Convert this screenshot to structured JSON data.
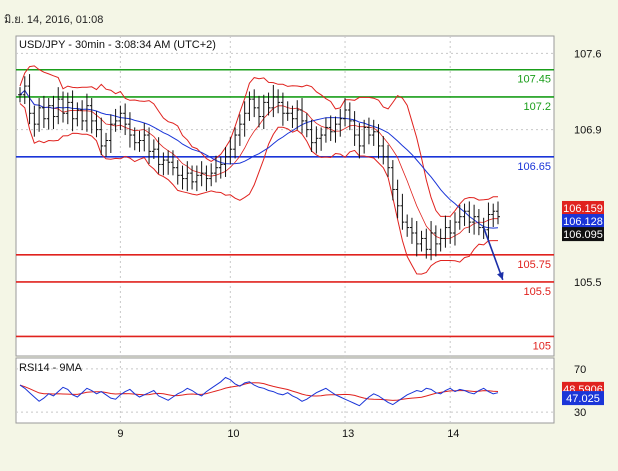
{
  "timestamp": "มิ.ย. 14, 2016, 01:08",
  "chart_data": {
    "type": "candlestick",
    "title": "USD/JPY - 30min - 3:08:34 AM (UTC+2)",
    "x_tick_labels": [
      "9",
      "10",
      "13",
      "14"
    ],
    "x_tick_positions": [
      21,
      44,
      68,
      90
    ],
    "x_range": [
      0,
      100
    ],
    "price_axis": {
      "range": [
        104.82,
        107.76
      ],
      "tick_labels": [
        "107.6",
        "106.9",
        "105.5"
      ],
      "tick_values": [
        107.6,
        106.9,
        105.5
      ]
    },
    "horizontal_levels": [
      {
        "label": "107.45",
        "value": 107.45,
        "color": "#1a9e1a"
      },
      {
        "label": "107.2",
        "value": 107.2,
        "color": "#1a9e1a"
      },
      {
        "label": "106.65",
        "value": 106.65,
        "color": "#1a35d8"
      },
      {
        "label": "105.75",
        "value": 105.75,
        "color": "#e0221e"
      },
      {
        "label": "105.5",
        "value": 105.5,
        "color": "#e0221e"
      },
      {
        "label": "105",
        "value": 105.0,
        "color": "#e0221e"
      }
    ],
    "price_markers": [
      {
        "label": "106.159",
        "value": 106.18,
        "color": "#e0221e"
      },
      {
        "label": "106.128",
        "value": 106.06,
        "color": "#1a35d8"
      },
      {
        "label": "106.095",
        "value": 105.94,
        "color": "#111111"
      }
    ],
    "price_series": [
      {
        "x": 0,
        "v": 107.22
      },
      {
        "x": 1,
        "v": 107.3
      },
      {
        "x": 2,
        "v": 107.05
      },
      {
        "x": 3,
        "v": 106.95
      },
      {
        "x": 4,
        "v": 107.1
      },
      {
        "x": 5,
        "v": 107.0
      },
      {
        "x": 6,
        "v": 107.12
      },
      {
        "x": 7,
        "v": 107.02
      },
      {
        "x": 8,
        "v": 107.18
      },
      {
        "x": 9,
        "v": 107.05
      },
      {
        "x": 10,
        "v": 107.15
      },
      {
        "x": 11,
        "v": 107.0
      },
      {
        "x": 12,
        "v": 107.08
      },
      {
        "x": 13,
        "v": 106.98
      },
      {
        "x": 14,
        "v": 107.12
      },
      {
        "x": 15,
        "v": 106.98
      },
      {
        "x": 16,
        "v": 106.9
      },
      {
        "x": 17,
        "v": 106.75
      },
      {
        "x": 18,
        "v": 106.8
      },
      {
        "x": 19,
        "v": 106.95
      },
      {
        "x": 20,
        "v": 106.98
      },
      {
        "x": 21,
        "v": 107.05
      },
      {
        "x": 22,
        "v": 106.95
      },
      {
        "x": 23,
        "v": 106.85
      },
      {
        "x": 24,
        "v": 106.78
      },
      {
        "x": 25,
        "v": 106.8
      },
      {
        "x": 26,
        "v": 106.85
      },
      {
        "x": 27,
        "v": 106.7
      },
      {
        "x": 28,
        "v": 106.72
      },
      {
        "x": 29,
        "v": 106.58
      },
      {
        "x": 30,
        "v": 106.62
      },
      {
        "x": 31,
        "v": 106.6
      },
      {
        "x": 32,
        "v": 106.55
      },
      {
        "x": 33,
        "v": 106.48
      },
      {
        "x": 34,
        "v": 106.45
      },
      {
        "x": 35,
        "v": 106.5
      },
      {
        "x": 36,
        "v": 106.42
      },
      {
        "x": 37,
        "v": 106.48
      },
      {
        "x": 38,
        "v": 106.5
      },
      {
        "x": 39,
        "v": 106.45
      },
      {
        "x": 40,
        "v": 106.5
      },
      {
        "x": 41,
        "v": 106.55
      },
      {
        "x": 42,
        "v": 106.58
      },
      {
        "x": 43,
        "v": 106.65
      },
      {
        "x": 44,
        "v": 106.72
      },
      {
        "x": 45,
        "v": 106.85
      },
      {
        "x": 46,
        "v": 106.95
      },
      {
        "x": 47,
        "v": 107.05
      },
      {
        "x": 48,
        "v": 107.18
      },
      {
        "x": 49,
        "v": 107.1
      },
      {
        "x": 50,
        "v": 107.02
      },
      {
        "x": 51,
        "v": 107.15
      },
      {
        "x": 52,
        "v": 107.1
      },
      {
        "x": 53,
        "v": 107.2
      },
      {
        "x": 54,
        "v": 107.15
      },
      {
        "x": 55,
        "v": 107.05
      },
      {
        "x": 56,
        "v": 107.05
      },
      {
        "x": 57,
        "v": 107.0
      },
      {
        "x": 58,
        "v": 107.08
      },
      {
        "x": 59,
        "v": 106.98
      },
      {
        "x": 60,
        "v": 106.9
      },
      {
        "x": 61,
        "v": 106.78
      },
      {
        "x": 62,
        "v": 106.82
      },
      {
        "x": 63,
        "v": 106.85
      },
      {
        "x": 64,
        "v": 106.92
      },
      {
        "x": 65,
        "v": 106.88
      },
      {
        "x": 66,
        "v": 106.95
      },
      {
        "x": 67,
        "v": 107.0
      },
      {
        "x": 68,
        "v": 107.08
      },
      {
        "x": 69,
        "v": 106.98
      },
      {
        "x": 70,
        "v": 106.85
      },
      {
        "x": 71,
        "v": 106.75
      },
      {
        "x": 72,
        "v": 106.92
      },
      {
        "x": 73,
        "v": 106.85
      },
      {
        "x": 74,
        "v": 106.88
      },
      {
        "x": 75,
        "v": 106.75
      },
      {
        "x": 76,
        "v": 106.65
      },
      {
        "x": 77,
        "v": 106.55
      },
      {
        "x": 78,
        "v": 106.35
      },
      {
        "x": 79,
        "v": 106.2
      },
      {
        "x": 80,
        "v": 106.05
      },
      {
        "x": 81,
        "v": 106.0
      },
      {
        "x": 82,
        "v": 105.95
      },
      {
        "x": 83,
        "v": 105.85
      },
      {
        "x": 84,
        "v": 105.9
      },
      {
        "x": 85,
        "v": 105.8
      },
      {
        "x": 86,
        "v": 105.95
      },
      {
        "x": 87,
        "v": 105.85
      },
      {
        "x": 88,
        "v": 105.9
      },
      {
        "x": 89,
        "v": 106.0
      },
      {
        "x": 90,
        "v": 105.95
      },
      {
        "x": 91,
        "v": 106.05
      },
      {
        "x": 92,
        "v": 106.1
      },
      {
        "x": 93,
        "v": 106.15
      },
      {
        "x": 94,
        "v": 106.05
      },
      {
        "x": 95,
        "v": 106.1
      },
      {
        "x": 96,
        "v": 106.0
      },
      {
        "x": 97,
        "v": 105.98
      },
      {
        "x": 98,
        "v": 106.12
      },
      {
        "x": 99,
        "v": 106.15
      },
      {
        "x": 100,
        "v": 106.1
      }
    ],
    "forecast_arrow": {
      "from": {
        "x": 97,
        "v": 106.0
      },
      "to": {
        "x": 101,
        "v": 105.52
      }
    },
    "rsi": {
      "title": "RSI14 - 9MA",
      "range": [
        20,
        80
      ],
      "tick_labels": [
        "70",
        "30"
      ],
      "tick_values": [
        70,
        30
      ],
      "markers": [
        {
          "label": "48.5906",
          "value": 51.5,
          "color": "#e0221e"
        },
        {
          "label": "47.025",
          "value": 43,
          "color": "#1a35d8"
        }
      ],
      "values": [
        55,
        52,
        48,
        44,
        40,
        43,
        47,
        45,
        49,
        53,
        51,
        46,
        44,
        48,
        52,
        50,
        47,
        49,
        46,
        43,
        42,
        46,
        49,
        51,
        47,
        44,
        46,
        48,
        50,
        45,
        43,
        41,
        44,
        47,
        49,
        52,
        50,
        47,
        45,
        49,
        52,
        55,
        58,
        62,
        60,
        56,
        54,
        57,
        58,
        55,
        53,
        52,
        50,
        49,
        47,
        46,
        48,
        45,
        43,
        40,
        42,
        45,
        48,
        50,
        52,
        49,
        46,
        44,
        42,
        40,
        38,
        36,
        40,
        44,
        47,
        45,
        42,
        39,
        37,
        40,
        43,
        46,
        48,
        50,
        49,
        52,
        51,
        48,
        47,
        50,
        52,
        49,
        51,
        50,
        48,
        47,
        50,
        52,
        49,
        47,
        48
      ]
    }
  }
}
